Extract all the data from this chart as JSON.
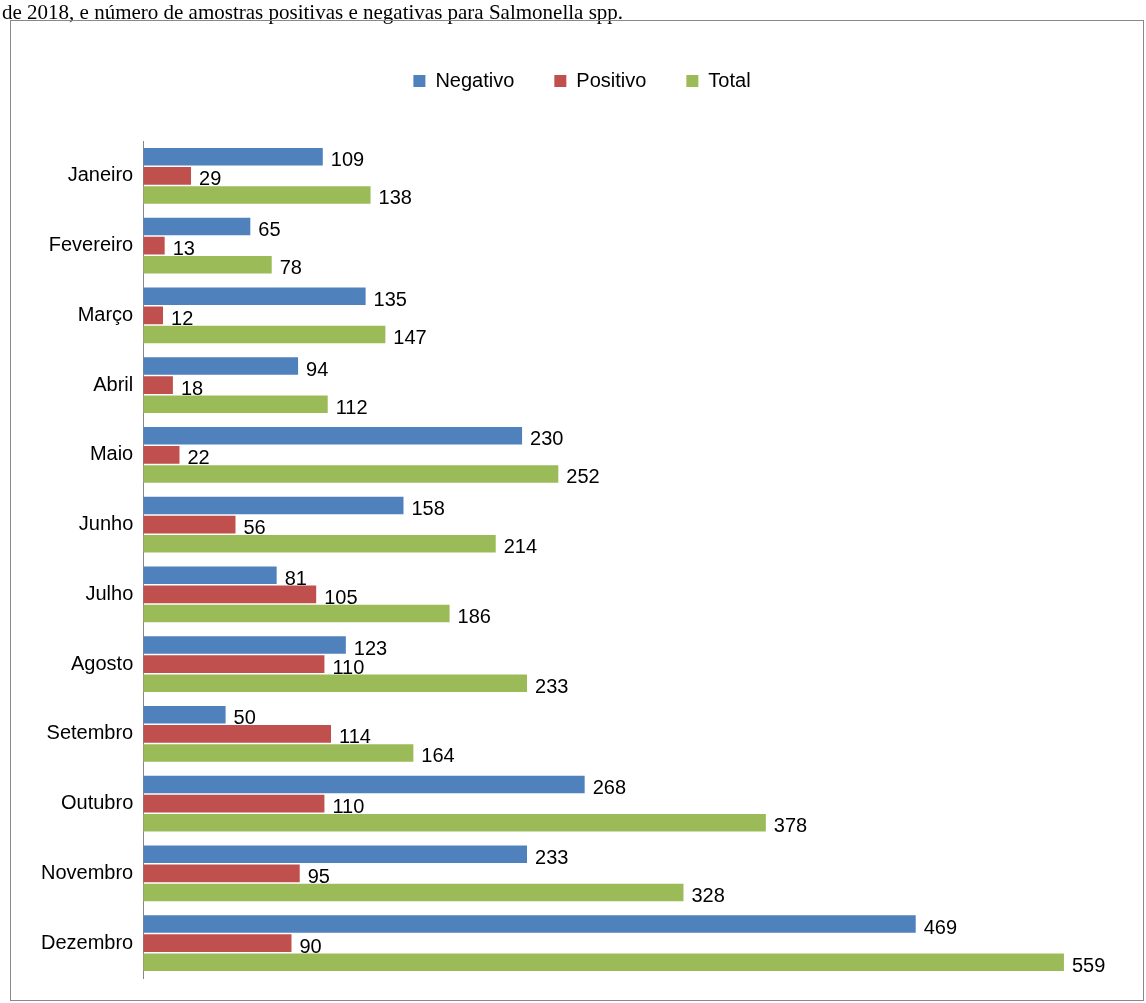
{
  "chart_data": {
    "type": "bar",
    "orientation": "horizontal",
    "data_labels": true,
    "legend": "top",
    "grid": false,
    "annotations": [
      "de 2018, e número de amostras positivas e negativas para Salmonella spp."
    ],
    "categories": [
      "Janeiro",
      "Fevereiro",
      "Março",
      "Abril",
      "Maio",
      "Junho",
      "Julho",
      "Agosto",
      "Setembro",
      "Outubro",
      "Novembro",
      "Dezembro"
    ],
    "series": [
      {
        "name": "Negativo",
        "color": "#4f81bd",
        "values": [
          109,
          65,
          135,
          94,
          230,
          158,
          81,
          123,
          50,
          268,
          233,
          469
        ]
      },
      {
        "name": "Positivo",
        "color": "#c0504d",
        "values": [
          29,
          13,
          12,
          18,
          22,
          56,
          105,
          110,
          114,
          110,
          95,
          90
        ]
      },
      {
        "name": "Total",
        "color": "#9bbb59",
        "values": [
          138,
          78,
          147,
          112,
          252,
          214,
          186,
          233,
          164,
          378,
          328,
          559
        ]
      }
    ]
  }
}
